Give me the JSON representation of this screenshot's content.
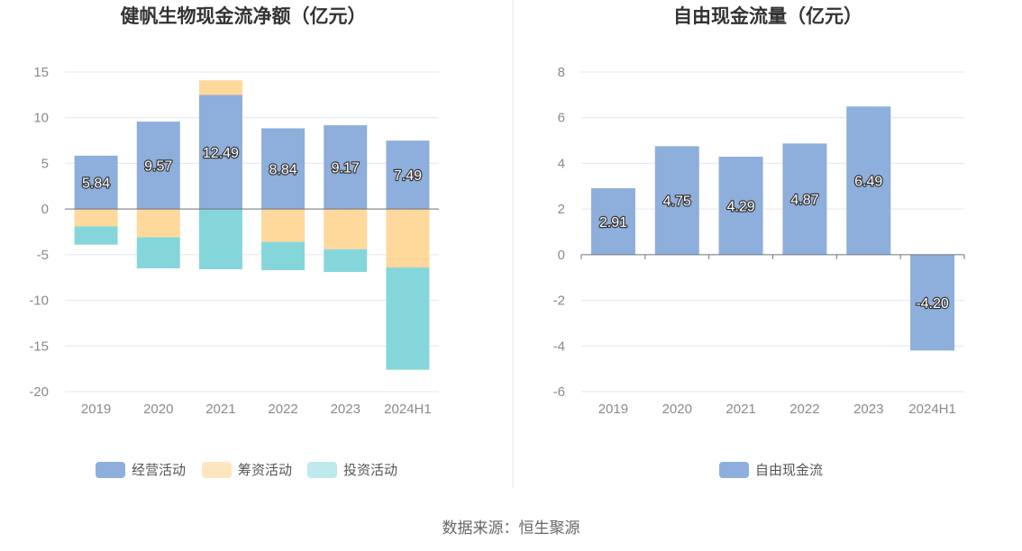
{
  "source": "数据来源：恒生聚源",
  "colors": {
    "operating": "#8eaedb",
    "financing": "#ffd89b",
    "investing": "#85d6da",
    "free_cash_flow": "#8eaedb",
    "investing_legend": "#bfe9ec",
    "financing_legend": "#fde5bf"
  },
  "chart_data": [
    {
      "type": "bar",
      "stacked": true,
      "title": "健帆生物现金流净额（亿元）",
      "categories": [
        "2019",
        "2020",
        "2021",
        "2022",
        "2023",
        "2024H1"
      ],
      "ylim": [
        -20,
        15
      ],
      "yticks": [
        "15",
        "10",
        "5",
        "0",
        "-5",
        "-10",
        "-15",
        "-20"
      ],
      "ytick_values": [
        15,
        10,
        5,
        0,
        -5,
        -10,
        -15,
        -20
      ],
      "grid": true,
      "legend_position": "bottom",
      "series": [
        {
          "name": "经营活动",
          "values": [
            5.84,
            9.57,
            12.49,
            8.84,
            9.17,
            7.49
          ],
          "labels": [
            "5.84",
            "9.57",
            "12.49",
            "8.84",
            "9.17",
            "7.49"
          ]
        },
        {
          "name": "筹资活动",
          "values": [
            -1.9,
            -3.1,
            1.6,
            -3.6,
            -4.4,
            -6.4
          ]
        },
        {
          "name": "投资活动",
          "values": [
            -2.0,
            -3.4,
            -6.6,
            -3.1,
            -2.5,
            -11.2
          ]
        }
      ]
    },
    {
      "type": "bar",
      "title": "自由现金流量（亿元）",
      "categories": [
        "2019",
        "2020",
        "2021",
        "2022",
        "2023",
        "2024H1"
      ],
      "ylim": [
        -6,
        8
      ],
      "yticks": [
        "8",
        "6",
        "4",
        "2",
        "0",
        "-2",
        "-4",
        "-6"
      ],
      "ytick_values": [
        8,
        6,
        4,
        2,
        0,
        -2,
        -4,
        -6
      ],
      "grid": true,
      "legend_position": "bottom",
      "series": [
        {
          "name": "自由现金流",
          "values": [
            2.91,
            4.75,
            4.29,
            4.87,
            6.49,
            -4.2
          ],
          "labels": [
            "2.91",
            "4.75",
            "4.29",
            "4.87",
            "6.49",
            "-4.20"
          ]
        }
      ]
    }
  ]
}
